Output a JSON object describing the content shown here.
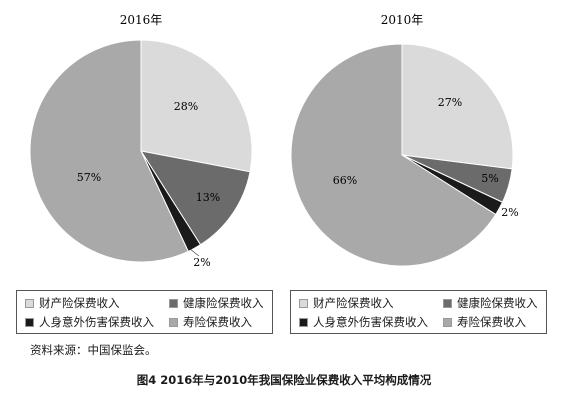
{
  "chart_data": [
    {
      "type": "pie",
      "title": "2016年",
      "slices": [
        {
          "label": "财产险保费收入",
          "value": 28,
          "display": "28%",
          "color": "#dadada"
        },
        {
          "label": "健康险保费收入",
          "value": 13,
          "display": "13%",
          "color": "#6b6b6b"
        },
        {
          "label": "人身意外伤害保费收入",
          "value": 2,
          "display": "2%",
          "color": "#1a1a1a"
        },
        {
          "label": "寿险保费收入",
          "value": 57,
          "display": "57%",
          "color": "#a9a9a9"
        }
      ]
    },
    {
      "type": "pie",
      "title": "2010年",
      "slices": [
        {
          "label": "财产险保费收入",
          "value": 27,
          "display": "27%",
          "color": "#dadada"
        },
        {
          "label": "健康险保费收入",
          "value": 5,
          "display": "5%",
          "color": "#6b6b6b"
        },
        {
          "label": "人身意外伤害保费收入",
          "value": 2,
          "display": "2%",
          "color": "#1a1a1a"
        },
        {
          "label": "寿险保费收入",
          "value": 66,
          "display": "66%",
          "color": "#a9a9a9"
        }
      ]
    }
  ],
  "legend": [
    {
      "label": "财产险保费收入",
      "color": "#dadada"
    },
    {
      "label": "健康险保费收入",
      "color": "#6b6b6b"
    },
    {
      "label": "人身意外伤害保费收入",
      "color": "#1a1a1a"
    },
    {
      "label": "寿险保费收入",
      "color": "#a9a9a9"
    }
  ],
  "source_note": "资料来源：中国保监会。",
  "caption": "图4   2016年与2010年我国保险业保费收入平均构成情况"
}
